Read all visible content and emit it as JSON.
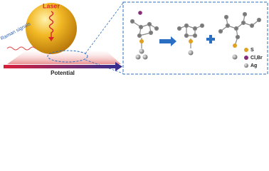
{
  "laser": "Laser",
  "raman": "Raman signals",
  "axis": "Potential",
  "legend": [
    {
      "label": "S"
    },
    {
      "label": "Cl,Br"
    },
    {
      "label": "Ag"
    }
  ]
}
